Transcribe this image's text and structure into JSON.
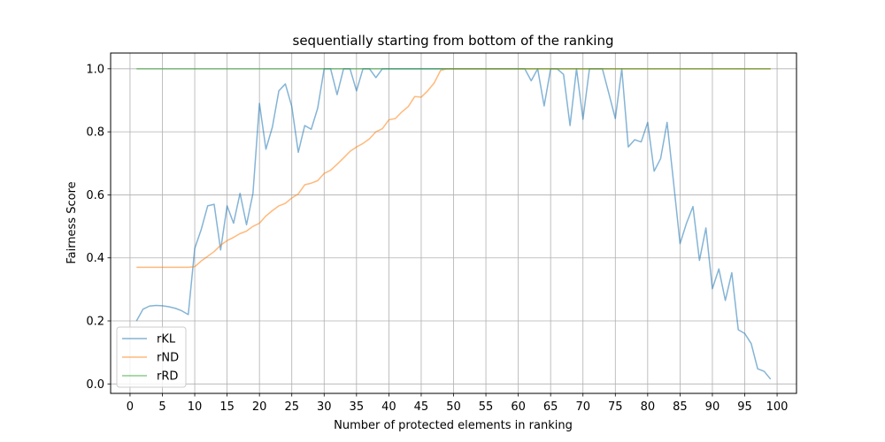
{
  "chart_data": {
    "type": "line",
    "title": "sequentially starting from bottom of the ranking",
    "xlabel": "Number of protected elements in ranking",
    "ylabel": "Fairness Score",
    "xlim": [
      -3,
      103
    ],
    "ylim": [
      -0.03,
      1.05
    ],
    "xticks": [
      0,
      5,
      10,
      15,
      20,
      25,
      30,
      35,
      40,
      45,
      50,
      55,
      60,
      65,
      70,
      75,
      80,
      85,
      90,
      95,
      100
    ],
    "yticks": [
      0.0,
      0.2,
      0.4,
      0.6,
      0.8,
      1.0
    ],
    "ytick_labels": [
      "0.0",
      "0.2",
      "0.4",
      "0.6",
      "0.8",
      "1.0"
    ],
    "grid": true,
    "legend_position": "lower-left",
    "x": [
      1,
      2,
      3,
      4,
      5,
      6,
      7,
      8,
      9,
      10,
      11,
      12,
      13,
      14,
      15,
      16,
      17,
      18,
      19,
      20,
      21,
      22,
      23,
      24,
      25,
      26,
      27,
      28,
      29,
      30,
      31,
      32,
      33,
      34,
      35,
      36,
      37,
      38,
      39,
      40,
      41,
      42,
      43,
      44,
      45,
      46,
      47,
      48,
      49,
      50,
      51,
      52,
      53,
      54,
      55,
      56,
      57,
      58,
      59,
      60,
      61,
      62,
      63,
      64,
      65,
      66,
      67,
      68,
      69,
      70,
      71,
      72,
      73,
      74,
      75,
      76,
      77,
      78,
      79,
      80,
      81,
      82,
      83,
      84,
      85,
      86,
      87,
      88,
      89,
      90,
      91,
      92,
      93,
      94,
      95,
      96,
      97,
      98,
      99
    ],
    "series": [
      {
        "name": "rKL",
        "color": "#1f77b4",
        "values": [
          0.2,
          0.237,
          0.247,
          0.249,
          0.248,
          0.245,
          0.24,
          0.232,
          0.22,
          0.43,
          0.49,
          0.565,
          0.57,
          0.425,
          0.565,
          0.51,
          0.605,
          0.505,
          0.605,
          0.89,
          0.745,
          0.815,
          0.93,
          0.952,
          0.88,
          0.735,
          0.82,
          0.808,
          0.875,
          1.0,
          1.0,
          0.918,
          1.0,
          1.0,
          0.93,
          1.0,
          1.0,
          0.972,
          1.0,
          1.0,
          1.0,
          1.0,
          1.0,
          1.0,
          1.0,
          1.0,
          1.0,
          1.0,
          1.0,
          1.0,
          1.0,
          1.0,
          1.0,
          1.0,
          1.0,
          1.0,
          1.0,
          1.0,
          1.0,
          1.0,
          1.0,
          0.962,
          1.0,
          0.882,
          1.0,
          1.0,
          0.982,
          0.82,
          1.0,
          0.84,
          1.0,
          1.0,
          1.0,
          0.922,
          0.842,
          1.0,
          0.752,
          0.775,
          0.768,
          0.83,
          0.675,
          0.715,
          0.83,
          0.64,
          0.445,
          0.51,
          0.563,
          0.392,
          0.495,
          0.302,
          0.365,
          0.265,
          0.353,
          0.172,
          0.16,
          0.128,
          0.048,
          0.04,
          0.015
        ]
      },
      {
        "name": "rND",
        "color": "#ff7f0e",
        "values": [
          0.37,
          0.37,
          0.37,
          0.37,
          0.37,
          0.37,
          0.37,
          0.37,
          0.37,
          0.372,
          0.39,
          0.405,
          0.42,
          0.44,
          0.455,
          0.465,
          0.477,
          0.485,
          0.5,
          0.51,
          0.533,
          0.55,
          0.565,
          0.573,
          0.59,
          0.603,
          0.632,
          0.637,
          0.645,
          0.668,
          0.678,
          0.697,
          0.717,
          0.738,
          0.752,
          0.763,
          0.778,
          0.8,
          0.81,
          0.838,
          0.842,
          0.863,
          0.88,
          0.912,
          0.91,
          0.93,
          0.955,
          0.995,
          1.0,
          1.0,
          1.0,
          1.0,
          1.0,
          1.0,
          1.0,
          1.0,
          1.0,
          1.0,
          1.0,
          1.0,
          1.0,
          1.0,
          1.0,
          1.0,
          1.0,
          1.0,
          1.0,
          1.0,
          1.0,
          1.0,
          1.0,
          1.0,
          1.0,
          1.0,
          1.0,
          1.0,
          1.0,
          1.0,
          1.0,
          1.0,
          1.0,
          1.0,
          1.0,
          1.0,
          1.0,
          1.0,
          1.0,
          1.0,
          1.0,
          1.0,
          1.0,
          1.0,
          1.0,
          1.0,
          1.0,
          1.0,
          1.0,
          1.0,
          1.0
        ]
      },
      {
        "name": "rRD",
        "color": "#2ca02c",
        "values": [
          1.0,
          1.0,
          1.0,
          1.0,
          1.0,
          1.0,
          1.0,
          1.0,
          1.0,
          1.0,
          1.0,
          1.0,
          1.0,
          1.0,
          1.0,
          1.0,
          1.0,
          1.0,
          1.0,
          1.0,
          1.0,
          1.0,
          1.0,
          1.0,
          1.0,
          1.0,
          1.0,
          1.0,
          1.0,
          1.0,
          1.0,
          1.0,
          1.0,
          1.0,
          1.0,
          1.0,
          1.0,
          1.0,
          1.0,
          1.0,
          1.0,
          1.0,
          1.0,
          1.0,
          1.0,
          1.0,
          1.0,
          1.0,
          1.0,
          1.0,
          1.0,
          1.0,
          1.0,
          1.0,
          1.0,
          1.0,
          1.0,
          1.0,
          1.0,
          1.0,
          1.0,
          1.0,
          1.0,
          1.0,
          1.0,
          1.0,
          1.0,
          1.0,
          1.0,
          1.0,
          1.0,
          1.0,
          1.0,
          1.0,
          1.0,
          1.0,
          1.0,
          1.0,
          1.0,
          1.0,
          1.0,
          1.0,
          1.0,
          1.0,
          1.0,
          1.0,
          1.0,
          1.0,
          1.0,
          1.0,
          1.0,
          1.0,
          1.0,
          1.0,
          1.0,
          1.0,
          1.0,
          1.0,
          1.0
        ]
      }
    ]
  }
}
